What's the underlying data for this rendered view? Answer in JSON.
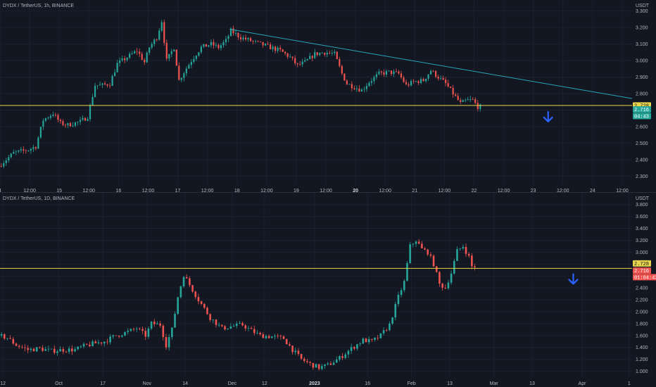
{
  "colors": {
    "background": "#131722",
    "grid": "#1c2030",
    "up": "#26a69a",
    "down": "#ef5350",
    "support_line": "#e8d44d",
    "trend_line": "#2aa3b8",
    "arrow": "#2962ff",
    "axis_text": "#b2b5be"
  },
  "chart_data": [
    {
      "type": "candlestick",
      "title": "DYDX / TetherUS, 1h, BINANCE",
      "unit_label": "USDT",
      "y_axis_position": "right",
      "ylim": [
        2.25,
        3.35
      ],
      "y_ticks": [
        {
          "v": 3.3,
          "label": "3.300"
        },
        {
          "v": 3.2,
          "label": "3.200"
        },
        {
          "v": 3.1,
          "label": "3.100"
        },
        {
          "v": 3.0,
          "label": "3.000"
        },
        {
          "v": 2.9,
          "label": "2.900"
        },
        {
          "v": 2.8,
          "label": "2.800"
        },
        {
          "v": 2.7,
          "label": "2.700"
        },
        {
          "v": 2.6,
          "label": "2.600"
        },
        {
          "v": 2.5,
          "label": "2.500"
        },
        {
          "v": 2.4,
          "label": "2.400"
        },
        {
          "v": 2.3,
          "label": "2.300"
        }
      ],
      "x_ticks": [
        {
          "i": 0,
          "label": "4",
          "bold": false
        },
        {
          "i": 12,
          "label": "12:00",
          "bold": false
        },
        {
          "i": 24,
          "label": "15",
          "bold": false
        },
        {
          "i": 36,
          "label": "12:00",
          "bold": false
        },
        {
          "i": 48,
          "label": "16",
          "bold": false
        },
        {
          "i": 60,
          "label": "12:00",
          "bold": false
        },
        {
          "i": 72,
          "label": "17",
          "bold": false
        },
        {
          "i": 84,
          "label": "12:00",
          "bold": false
        },
        {
          "i": 96,
          "label": "18",
          "bold": false
        },
        {
          "i": 108,
          "label": "12:00",
          "bold": false
        },
        {
          "i": 120,
          "label": "19",
          "bold": false
        },
        {
          "i": 132,
          "label": "12:00",
          "bold": false
        },
        {
          "i": 144,
          "label": "20",
          "bold": true
        },
        {
          "i": 156,
          "label": "12:00",
          "bold": false
        },
        {
          "i": 168,
          "label": "21",
          "bold": false
        },
        {
          "i": 180,
          "label": "12:00",
          "bold": false
        },
        {
          "i": 192,
          "label": "22",
          "bold": false
        },
        {
          "i": 204,
          "label": "12:00",
          "bold": false
        },
        {
          "i": 216,
          "label": "23",
          "bold": false
        },
        {
          "i": 228,
          "label": "12:00",
          "bold": false
        },
        {
          "i": 240,
          "label": "24",
          "bold": false
        },
        {
          "i": 252,
          "label": "12:00",
          "bold": false
        }
      ],
      "x_range": [
        0,
        256
      ],
      "candle_count": 195,
      "support_level": 2.728,
      "trendline": {
        "from": [
          93,
          3.19
        ],
        "to": [
          256,
          2.77
        ]
      },
      "arrow_at": {
        "i": 222,
        "v": 2.66
      },
      "price_tags": [
        {
          "label": "2.728",
          "v": 2.728,
          "bg": "#e8d44d",
          "fg": "#131722"
        },
        {
          "label": "2.716",
          "v": 2.704,
          "bg": "#26a69a",
          "fg": "#ffffff"
        },
        {
          "label": "04:43",
          "v": 2.664,
          "bg": "#26a69a",
          "fg": "#ffffff"
        }
      ],
      "anchors": [
        [
          0,
          2.36
        ],
        [
          6,
          2.44
        ],
        [
          12,
          2.46
        ],
        [
          15,
          2.48
        ],
        [
          18,
          2.64
        ],
        [
          22,
          2.68
        ],
        [
          25,
          2.62
        ],
        [
          28,
          2.61
        ],
        [
          33,
          2.63
        ],
        [
          36,
          2.66
        ],
        [
          39,
          2.85
        ],
        [
          42,
          2.85
        ],
        [
          45,
          2.86
        ],
        [
          48,
          2.98
        ],
        [
          52,
          3.02
        ],
        [
          56,
          3.06
        ],
        [
          59,
          2.99
        ],
        [
          61,
          3.08
        ],
        [
          64,
          3.14
        ],
        [
          66,
          3.24
        ],
        [
          68,
          3.0
        ],
        [
          71,
          3.08
        ],
        [
          73,
          2.88
        ],
        [
          75,
          2.93
        ],
        [
          78,
          3.0
        ],
        [
          82,
          3.08
        ],
        [
          86,
          3.1
        ],
        [
          89,
          3.08
        ],
        [
          92,
          3.12
        ],
        [
          94,
          3.18
        ],
        [
          98,
          3.14
        ],
        [
          102,
          3.12
        ],
        [
          106,
          3.1
        ],
        [
          110,
          3.08
        ],
        [
          114,
          3.06
        ],
        [
          118,
          3.02
        ],
        [
          121,
          2.97
        ],
        [
          124,
          2.99
        ],
        [
          128,
          3.04
        ],
        [
          132,
          3.05
        ],
        [
          136,
          3.04
        ],
        [
          139,
          2.92
        ],
        [
          141,
          2.86
        ],
        [
          144,
          2.84
        ],
        [
          147,
          2.82
        ],
        [
          150,
          2.87
        ],
        [
          154,
          2.92
        ],
        [
          158,
          2.93
        ],
        [
          162,
          2.92
        ],
        [
          165,
          2.85
        ],
        [
          168,
          2.87
        ],
        [
          172,
          2.88
        ],
        [
          175,
          2.94
        ],
        [
          178,
          2.9
        ],
        [
          181,
          2.86
        ],
        [
          184,
          2.8
        ],
        [
          187,
          2.74
        ],
        [
          190,
          2.76
        ],
        [
          192,
          2.76
        ],
        [
          194,
          2.72
        ]
      ]
    },
    {
      "type": "candlestick",
      "title": "DYDX / TetherUS, 1D, BINANCE",
      "unit_label": "USDT",
      "y_axis_position": "right",
      "ylim": [
        0.9,
        3.95
      ],
      "y_ticks": [
        {
          "v": 3.8,
          "label": "3.800"
        },
        {
          "v": 3.6,
          "label": "3.600"
        },
        {
          "v": 3.4,
          "label": "3.400"
        },
        {
          "v": 3.2,
          "label": "3.200"
        },
        {
          "v": 3.0,
          "label": "3.000"
        },
        {
          "v": 2.8,
          "label": "2.800"
        },
        {
          "v": 2.6,
          "label": "2.600"
        },
        {
          "v": 2.4,
          "label": "2.400"
        },
        {
          "v": 2.2,
          "label": "2.200"
        },
        {
          "v": 2.0,
          "label": "2.000"
        },
        {
          "v": 1.8,
          "label": "1.800"
        },
        {
          "v": 1.6,
          "label": "1.600"
        },
        {
          "v": 1.4,
          "label": "1.400"
        },
        {
          "v": 1.2,
          "label": "1.200"
        },
        {
          "v": 1.0,
          "label": "1.000"
        }
      ],
      "x_ticks": [
        {
          "i": 1,
          "label": "12",
          "bold": false
        },
        {
          "i": 20,
          "label": "Oct",
          "bold": false
        },
        {
          "i": 35,
          "label": "17",
          "bold": false
        },
        {
          "i": 50,
          "label": "Nov",
          "bold": false
        },
        {
          "i": 63,
          "label": "14",
          "bold": false
        },
        {
          "i": 79,
          "label": "Dec",
          "bold": false
        },
        {
          "i": 90,
          "label": "12",
          "bold": false
        },
        {
          "i": 107,
          "label": "2023",
          "bold": true
        },
        {
          "i": 125,
          "label": "16",
          "bold": false
        },
        {
          "i": 140,
          "label": "Feb",
          "bold": false
        },
        {
          "i": 153,
          "label": "13",
          "bold": false
        },
        {
          "i": 168,
          "label": "Mar",
          "bold": false
        },
        {
          "i": 181,
          "label": "13",
          "bold": false
        },
        {
          "i": 198,
          "label": "Apr",
          "bold": false
        },
        {
          "i": 214,
          "label": "1",
          "bold": false
        }
      ],
      "x_range": [
        0,
        215
      ],
      "candle_count": 162,
      "support_level": 2.728,
      "arrow_at": {
        "i": 195,
        "v": 2.55
      },
      "price_tags": [
        {
          "label": "2.728",
          "v": 2.81,
          "bg": "#e8d44d",
          "fg": "#131722"
        },
        {
          "label": "2.716",
          "v": 2.69,
          "bg": "#ef5350",
          "fg": "#ffffff"
        },
        {
          "label": "01:04:43",
          "v": 2.58,
          "bg": "#ef5350",
          "fg": "#ffffff"
        }
      ],
      "anchors": [
        [
          0,
          1.6
        ],
        [
          3,
          1.56
        ],
        [
          6,
          1.44
        ],
        [
          10,
          1.36
        ],
        [
          14,
          1.38
        ],
        [
          18,
          1.34
        ],
        [
          22,
          1.36
        ],
        [
          26,
          1.36
        ],
        [
          29,
          1.42
        ],
        [
          32,
          1.46
        ],
        [
          36,
          1.5
        ],
        [
          40,
          1.6
        ],
        [
          44,
          1.66
        ],
        [
          47,
          1.72
        ],
        [
          50,
          1.6
        ],
        [
          52,
          1.8
        ],
        [
          55,
          1.78
        ],
        [
          57,
          1.44
        ],
        [
          59,
          1.7
        ],
        [
          61,
          2.25
        ],
        [
          63,
          2.62
        ],
        [
          65,
          2.45
        ],
        [
          68,
          2.2
        ],
        [
          72,
          1.9
        ],
        [
          76,
          1.72
        ],
        [
          80,
          1.76
        ],
        [
          83,
          1.78
        ],
        [
          86,
          1.68
        ],
        [
          89,
          1.6
        ],
        [
          93,
          1.58
        ],
        [
          97,
          1.55
        ],
        [
          100,
          1.36
        ],
        [
          103,
          1.2
        ],
        [
          106,
          1.12
        ],
        [
          109,
          1.06
        ],
        [
          112,
          1.1
        ],
        [
          116,
          1.22
        ],
        [
          120,
          1.38
        ],
        [
          124,
          1.52
        ],
        [
          127,
          1.5
        ],
        [
          130,
          1.6
        ],
        [
          133,
          1.78
        ],
        [
          136,
          2.25
        ],
        [
          138,
          2.5
        ],
        [
          140,
          3.1
        ],
        [
          142,
          3.2
        ],
        [
          144,
          3.05
        ],
        [
          146,
          3.0
        ],
        [
          148,
          2.8
        ],
        [
          150,
          2.46
        ],
        [
          152,
          2.4
        ],
        [
          154,
          2.65
        ],
        [
          156,
          3.02
        ],
        [
          158,
          3.1
        ],
        [
          160,
          2.92
        ],
        [
          161,
          2.76
        ]
      ]
    }
  ]
}
